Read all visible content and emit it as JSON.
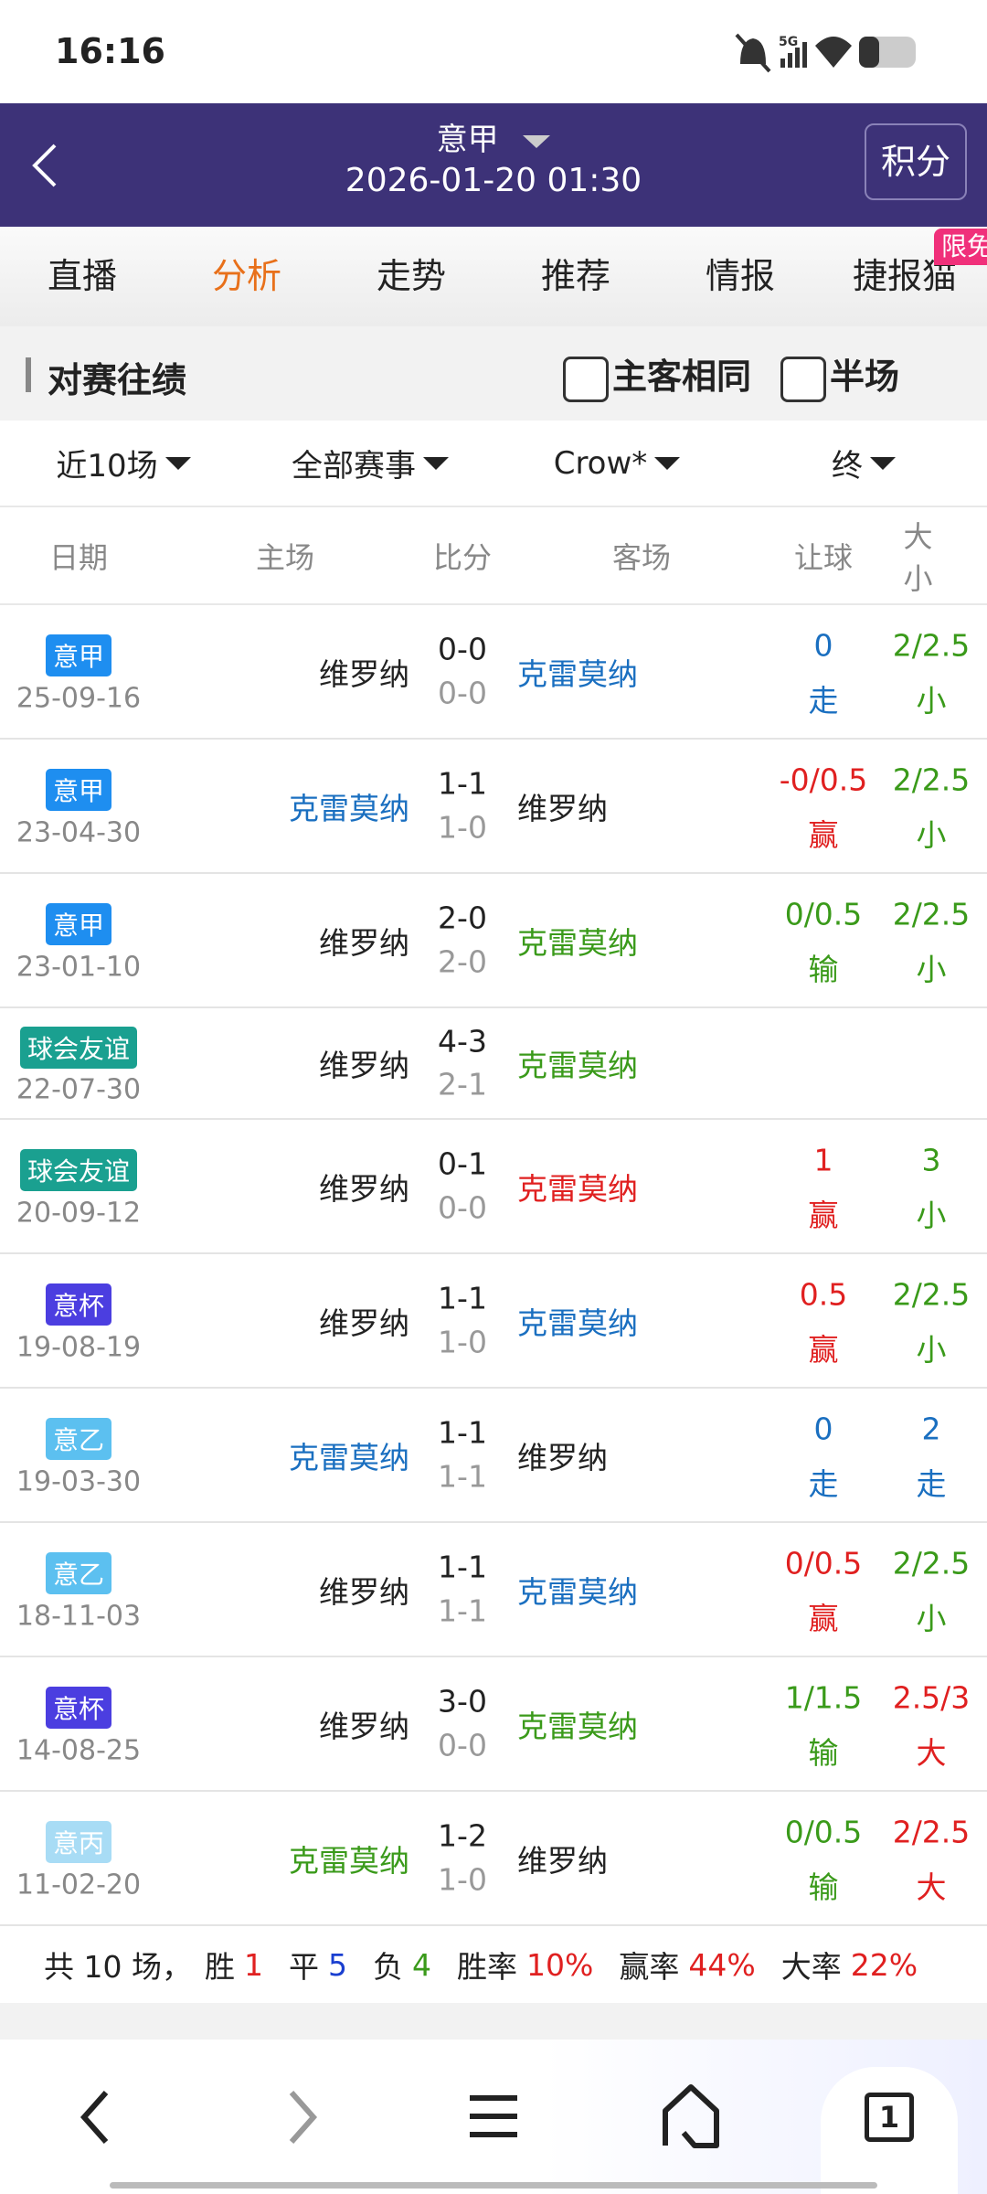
{
  "status": {
    "time": "16:16",
    "network": "5G"
  },
  "header": {
    "league": "意甲",
    "datetime": "2026-01-20 01:30",
    "button": "积分"
  },
  "tabs": {
    "items": [
      "直播",
      "分析",
      "走势",
      "推荐",
      "情报",
      "捷报猫"
    ],
    "active": 1,
    "badge": "限免"
  },
  "section": {
    "title": "对赛往绩",
    "options": [
      "主客相同",
      "半场"
    ]
  },
  "filters": [
    "近10场",
    "全部赛事",
    "Crow*",
    "终"
  ],
  "table": {
    "headers": [
      "日期",
      "主场",
      "比分",
      "客场",
      "让球",
      "大小"
    ],
    "rows": [
      {
        "league": "意甲",
        "badge_color": "#1e8ef0",
        "date": "25-09-16",
        "home": "维罗纳",
        "home_color": "#222222",
        "score": "0-0",
        "half": "0-0",
        "away": "克雷莫纳",
        "away_color": "#1a6fc0",
        "handicap": "0",
        "handicap_result": "走",
        "handicap_color": "#1a6fc0",
        "ou": "2/2.5",
        "ou_result": "小",
        "ou_color": "#3a9a1a"
      },
      {
        "league": "意甲",
        "badge_color": "#1e8ef0",
        "date": "23-04-30",
        "home": "克雷莫纳",
        "home_color": "#1a6fc0",
        "score": "1-1",
        "half": "1-0",
        "away": "维罗纳",
        "away_color": "#222222",
        "handicap": "-0/0.5",
        "handicap_result": "赢",
        "handicap_color": "#e02020",
        "ou": "2/2.5",
        "ou_result": "小",
        "ou_color": "#3a9a1a"
      },
      {
        "league": "意甲",
        "badge_color": "#1e8ef0",
        "date": "23-01-10",
        "home": "维罗纳",
        "home_color": "#222222",
        "score": "2-0",
        "half": "2-0",
        "away": "克雷莫纳",
        "away_color": "#3a9a1a",
        "handicap": "0/0.5",
        "handicap_result": "输",
        "handicap_color": "#3a9a1a",
        "ou": "2/2.5",
        "ou_result": "小",
        "ou_color": "#3a9a1a"
      },
      {
        "league": "球会友谊",
        "badge_color": "#1aa090",
        "date": "22-07-30",
        "home": "维罗纳",
        "home_color": "#222222",
        "score": "4-3",
        "half": "2-1",
        "away": "克雷莫纳",
        "away_color": "#3a9a1a",
        "handicap": null,
        "handicap_result": null,
        "handicap_color": null,
        "ou": null,
        "ou_result": null,
        "ou_color": null
      },
      {
        "league": "球会友谊",
        "badge_color": "#1aa090",
        "date": "20-09-12",
        "home": "维罗纳",
        "home_color": "#222222",
        "score": "0-1",
        "half": "0-0",
        "away": "克雷莫纳",
        "away_color": "#e02020",
        "handicap": "1",
        "handicap_result": "赢",
        "handicap_color": "#e02020",
        "ou": "3",
        "ou_result": "小",
        "ou_color": "#3a9a1a"
      },
      {
        "league": "意杯",
        "badge_color": "#4b3ee0",
        "date": "19-08-19",
        "home": "维罗纳",
        "home_color": "#222222",
        "score": "1-1",
        "half": "1-0",
        "away": "克雷莫纳",
        "away_color": "#1a6fc0",
        "handicap": "0.5",
        "handicap_result": "赢",
        "handicap_color": "#e02020",
        "ou": "2/2.5",
        "ou_result": "小",
        "ou_color": "#3a9a1a"
      },
      {
        "league": "意乙",
        "badge_color": "#5cc0f0",
        "date": "19-03-30",
        "home": "克雷莫纳",
        "home_color": "#1a6fc0",
        "score": "1-1",
        "half": "1-1",
        "away": "维罗纳",
        "away_color": "#222222",
        "handicap": "0",
        "handicap_result": "走",
        "handicap_color": "#1a6fc0",
        "ou": "2",
        "ou_result": "走",
        "ou_color": "#1a6fc0"
      },
      {
        "league": "意乙",
        "badge_color": "#5cc0f0",
        "date": "18-11-03",
        "home": "维罗纳",
        "home_color": "#222222",
        "score": "1-1",
        "half": "1-1",
        "away": "克雷莫纳",
        "away_color": "#1a6fc0",
        "handicap": "0/0.5",
        "handicap_result": "赢",
        "handicap_color": "#e02020",
        "ou": "2/2.5",
        "ou_result": "小",
        "ou_color": "#3a9a1a"
      },
      {
        "league": "意杯",
        "badge_color": "#4b3ee0",
        "date": "14-08-25",
        "home": "维罗纳",
        "home_color": "#222222",
        "score": "3-0",
        "half": "0-0",
        "away": "克雷莫纳",
        "away_color": "#3a9a1a",
        "handicap": "1/1.5",
        "handicap_result": "输",
        "handicap_color": "#3a9a1a",
        "ou": "2.5/3",
        "ou_result": "大",
        "ou_color": "#e02020"
      },
      {
        "league": "意丙",
        "badge_color": "#a8dcf5",
        "date": "11-02-20",
        "home": "克雷莫纳",
        "home_color": "#3a9a1a",
        "score": "1-2",
        "half": "1-0",
        "away": "维罗纳",
        "away_color": "#222222",
        "handicap": "0/0.5",
        "handicap_result": "输",
        "handicap_color": "#3a9a1a",
        "ou": "2/2.5",
        "ou_result": "大",
        "ou_color": "#e02020"
      }
    ]
  },
  "summary": {
    "total": "共 10 场，",
    "items": [
      {
        "label": "胜",
        "value": "1",
        "color": "#e02020"
      },
      {
        "label": "平",
        "value": "5",
        "color": "#1a3fd0"
      },
      {
        "label": "负",
        "value": "4",
        "color": "#3a9a1a"
      },
      {
        "label": "胜率",
        "value": "10%",
        "color": "#e02020"
      },
      {
        "label": "赢率",
        "value": "44%",
        "color": "#e02020"
      },
      {
        "label": "大率",
        "value": "22%",
        "color": "#e02020"
      }
    ]
  },
  "nav": {
    "tab_count": "1"
  }
}
